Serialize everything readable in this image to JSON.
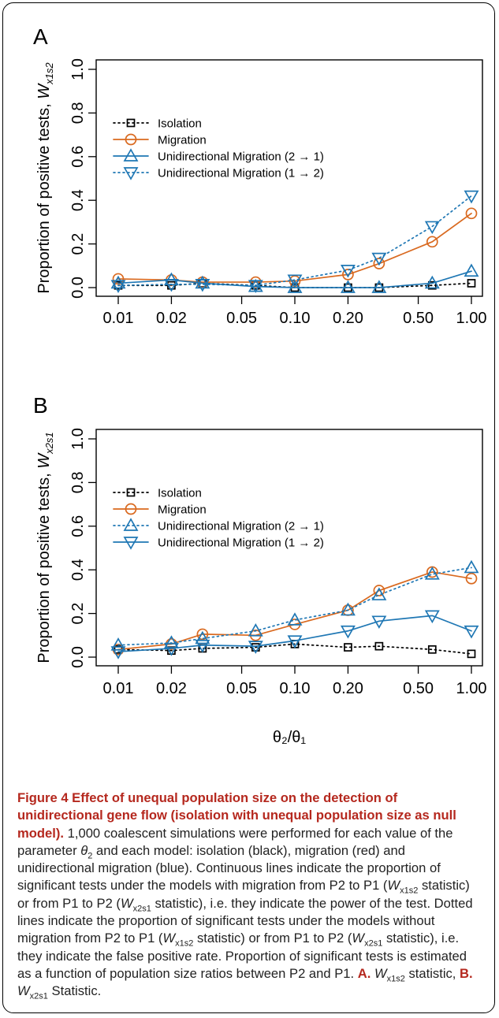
{
  "chart_data": [
    {
      "type": "line",
      "panel_label": "A",
      "ylabel_prefix": "Proportion of positive tests,",
      "ylabel_stat": "W",
      "ylabel_sub": "x1s2",
      "xlabel": "",
      "x_scale": "log",
      "x": [
        0.01,
        0.02,
        0.03,
        0.06,
        0.1,
        0.2,
        0.3,
        0.6,
        1.0
      ],
      "x_ticks": [
        0.01,
        0.02,
        0.05,
        0.1,
        0.2,
        0.5,
        1.0
      ],
      "x_tick_labels": [
        "0.01",
        "0.02",
        "0.05",
        "0.10",
        "0.20",
        "0.50",
        "1.00"
      ],
      "ylim": [
        0,
        1
      ],
      "y_ticks": [
        0.0,
        0.2,
        0.4,
        0.6,
        0.8,
        1.0
      ],
      "y_tick_labels": [
        "0.0",
        "0.2",
        "0.4",
        "0.6",
        "0.8",
        "1.0"
      ],
      "legend_position": "top-left",
      "series": [
        {
          "name": "Isolation",
          "color": "#000000",
          "line": "dotted",
          "marker": "square",
          "values": [
            0.01,
            0.01,
            0.02,
            0.01,
            0.0,
            0.0,
            0.0,
            0.01,
            0.02
          ]
        },
        {
          "name": "Migration",
          "color": "#d9691f",
          "line": "solid",
          "marker": "circle",
          "values": [
            0.04,
            0.035,
            0.025,
            0.025,
            0.03,
            0.06,
            0.11,
            0.21,
            0.34
          ]
        },
        {
          "name": "Unidirectional Migration (2 → 1)",
          "color": "#1f77b4",
          "line": "solid",
          "marker": "triangle-up",
          "values": [
            0.02,
            0.035,
            0.02,
            0.005,
            0.0,
            0.0,
            0.0,
            0.02,
            0.075
          ]
        },
        {
          "name": "Unidirectional Migration (1 → 2)",
          "color": "#1f77b4",
          "line": "dotted",
          "marker": "triangle-down",
          "values": [
            0.01,
            0.015,
            0.015,
            0.01,
            0.035,
            0.08,
            0.135,
            0.28,
            0.42
          ]
        }
      ]
    },
    {
      "type": "line",
      "panel_label": "B",
      "ylabel_prefix": "Proportion of positive tests,",
      "ylabel_stat": "W",
      "ylabel_sub": "x2s1",
      "xlabel": "θ₂/θ₁",
      "x_scale": "log",
      "x": [
        0.01,
        0.02,
        0.03,
        0.06,
        0.1,
        0.2,
        0.3,
        0.6,
        1.0
      ],
      "x_ticks": [
        0.01,
        0.02,
        0.05,
        0.1,
        0.2,
        0.5,
        1.0
      ],
      "x_tick_labels": [
        "0.01",
        "0.02",
        "0.05",
        "0.10",
        "0.20",
        "0.50",
        "1.00"
      ],
      "ylim": [
        0,
        1
      ],
      "y_ticks": [
        0.0,
        0.2,
        0.4,
        0.6,
        0.8,
        1.0
      ],
      "y_tick_labels": [
        "0.0",
        "0.2",
        "0.4",
        "0.6",
        "0.8",
        "1.0"
      ],
      "legend_position": "top-left",
      "series": [
        {
          "name": "Isolation",
          "color": "#000000",
          "line": "dotted",
          "marker": "square",
          "values": [
            0.035,
            0.03,
            0.04,
            0.045,
            0.06,
            0.045,
            0.05,
            0.035,
            0.015
          ]
        },
        {
          "name": "Migration",
          "color": "#d9691f",
          "line": "solid",
          "marker": "circle",
          "values": [
            0.035,
            0.06,
            0.105,
            0.1,
            0.15,
            0.215,
            0.305,
            0.39,
            0.36
          ]
        },
        {
          "name": "Unidirectional Migration (2 → 1)",
          "color": "#1f77b4",
          "line": "dotted",
          "marker": "triangle-up",
          "values": [
            0.055,
            0.065,
            0.085,
            0.12,
            0.17,
            0.215,
            0.285,
            0.38,
            0.41
          ]
        },
        {
          "name": "Unidirectional Migration (1 → 2)",
          "color": "#1f77b4",
          "line": "solid",
          "marker": "triangle-down",
          "values": [
            0.025,
            0.04,
            0.055,
            0.05,
            0.075,
            0.12,
            0.165,
            0.19,
            0.12
          ]
        }
      ]
    }
  ],
  "caption": {
    "title": "Figure 4 Effect of unequal population size on the detection of unidirectional gene flow (isolation with unequal population size as null model).",
    "body_1": " 1,000 coalescent simulations were performed for each value of the parameter ",
    "theta": "θ",
    "theta_sub": "2",
    "body_2": " and each model: isolation (black), migration (red) and unidirectional migration (blue). Continuous lines indicate the proportion of significant tests under the models with migration from P2 to P1 (",
    "stat_w": "W",
    "stat_a_sub": "x1s2",
    "body_3": " statistic) or from P1 to P2 (",
    "stat_b_sub": "x2s1",
    "body_4": " statistic), i.e. they indicate the power of the test. Dotted lines indicate the proportion of significant tests under the models without migration from P2 to P1 (",
    "body_5": " statistic) or from P1 to P2 (",
    "body_6": " statistic), i.e. they indicate the false positive rate. Proportion of significant tests is estimated as a function of population size ratios between P2 and P1. ",
    "label_a": "A.",
    "space": " ",
    "part_a_text": " statistic, ",
    "label_b": "B.",
    "part_b_text": " Statistic."
  }
}
